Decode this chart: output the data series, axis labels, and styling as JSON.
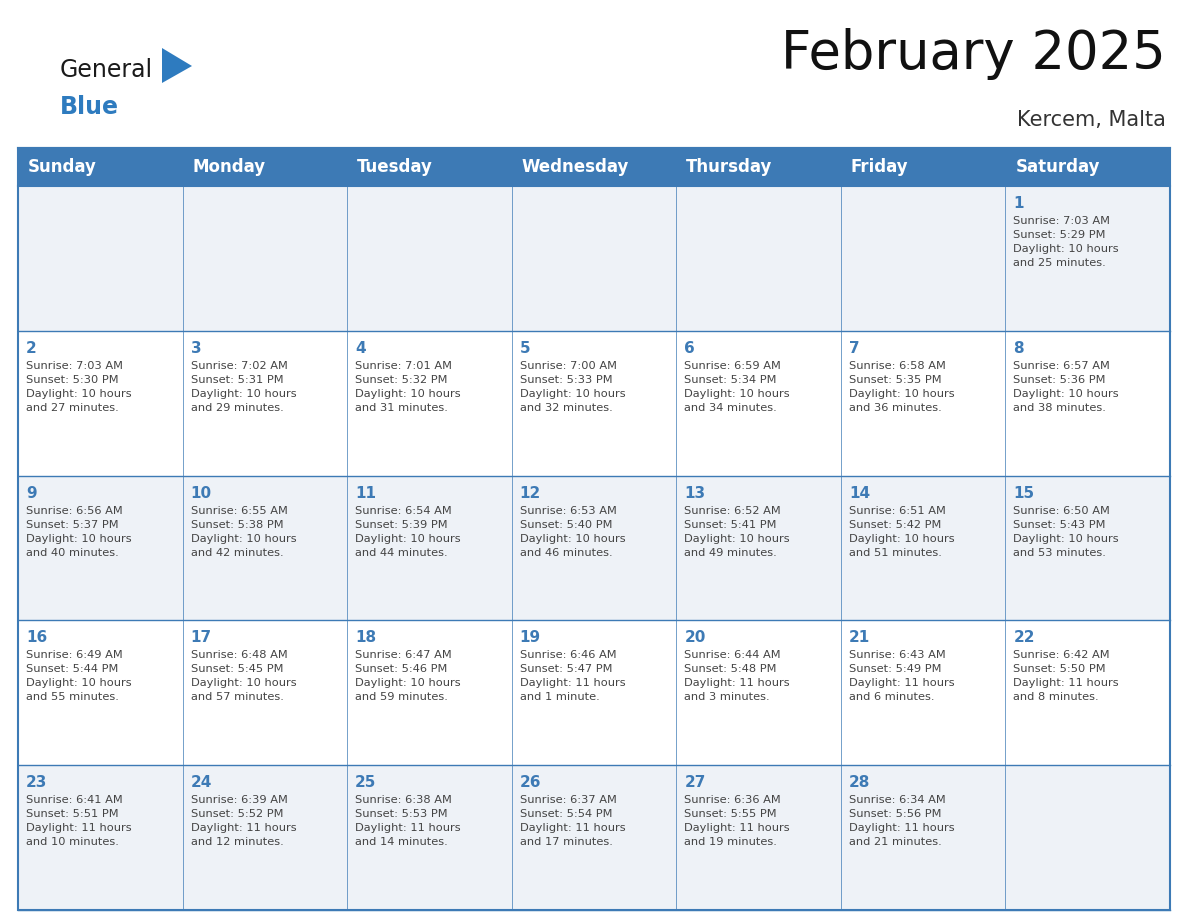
{
  "title": "February 2025",
  "subtitle": "Kercem, Malta",
  "header_bg": "#3d7ab5",
  "header_text_color": "#ffffff",
  "cell_bg_light": "#eef2f7",
  "cell_bg_white": "#ffffff",
  "border_color": "#3d7ab5",
  "text_color": "#444444",
  "day_num_color": "#3d7ab5",
  "logo_black": "#1a1a1a",
  "logo_blue": "#2e7bbf",
  "logo_tri": "#2e7bbf",
  "day_headers": [
    "Sunday",
    "Monday",
    "Tuesday",
    "Wednesday",
    "Thursday",
    "Friday",
    "Saturday"
  ],
  "title_fontsize": 38,
  "subtitle_fontsize": 15,
  "header_fontsize": 12,
  "day_num_fontsize": 11,
  "cell_fontsize": 8.2,
  "calendar": [
    [
      null,
      null,
      null,
      null,
      null,
      null,
      {
        "day": 1,
        "sunrise": "7:03 AM",
        "sunset": "5:29 PM",
        "daylight_h": "10 hours",
        "daylight_m": "and 25 minutes."
      }
    ],
    [
      {
        "day": 2,
        "sunrise": "7:03 AM",
        "sunset": "5:30 PM",
        "daylight_h": "10 hours",
        "daylight_m": "and 27 minutes."
      },
      {
        "day": 3,
        "sunrise": "7:02 AM",
        "sunset": "5:31 PM",
        "daylight_h": "10 hours",
        "daylight_m": "and 29 minutes."
      },
      {
        "day": 4,
        "sunrise": "7:01 AM",
        "sunset": "5:32 PM",
        "daylight_h": "10 hours",
        "daylight_m": "and 31 minutes."
      },
      {
        "day": 5,
        "sunrise": "7:00 AM",
        "sunset": "5:33 PM",
        "daylight_h": "10 hours",
        "daylight_m": "and 32 minutes."
      },
      {
        "day": 6,
        "sunrise": "6:59 AM",
        "sunset": "5:34 PM",
        "daylight_h": "10 hours",
        "daylight_m": "and 34 minutes."
      },
      {
        "day": 7,
        "sunrise": "6:58 AM",
        "sunset": "5:35 PM",
        "daylight_h": "10 hours",
        "daylight_m": "and 36 minutes."
      },
      {
        "day": 8,
        "sunrise": "6:57 AM",
        "sunset": "5:36 PM",
        "daylight_h": "10 hours",
        "daylight_m": "and 38 minutes."
      }
    ],
    [
      {
        "day": 9,
        "sunrise": "6:56 AM",
        "sunset": "5:37 PM",
        "daylight_h": "10 hours",
        "daylight_m": "and 40 minutes."
      },
      {
        "day": 10,
        "sunrise": "6:55 AM",
        "sunset": "5:38 PM",
        "daylight_h": "10 hours",
        "daylight_m": "and 42 minutes."
      },
      {
        "day": 11,
        "sunrise": "6:54 AM",
        "sunset": "5:39 PM",
        "daylight_h": "10 hours",
        "daylight_m": "and 44 minutes."
      },
      {
        "day": 12,
        "sunrise": "6:53 AM",
        "sunset": "5:40 PM",
        "daylight_h": "10 hours",
        "daylight_m": "and 46 minutes."
      },
      {
        "day": 13,
        "sunrise": "6:52 AM",
        "sunset": "5:41 PM",
        "daylight_h": "10 hours",
        "daylight_m": "and 49 minutes."
      },
      {
        "day": 14,
        "sunrise": "6:51 AM",
        "sunset": "5:42 PM",
        "daylight_h": "10 hours",
        "daylight_m": "and 51 minutes."
      },
      {
        "day": 15,
        "sunrise": "6:50 AM",
        "sunset": "5:43 PM",
        "daylight_h": "10 hours",
        "daylight_m": "and 53 minutes."
      }
    ],
    [
      {
        "day": 16,
        "sunrise": "6:49 AM",
        "sunset": "5:44 PM",
        "daylight_h": "10 hours",
        "daylight_m": "and 55 minutes."
      },
      {
        "day": 17,
        "sunrise": "6:48 AM",
        "sunset": "5:45 PM",
        "daylight_h": "10 hours",
        "daylight_m": "and 57 minutes."
      },
      {
        "day": 18,
        "sunrise": "6:47 AM",
        "sunset": "5:46 PM",
        "daylight_h": "10 hours",
        "daylight_m": "and 59 minutes."
      },
      {
        "day": 19,
        "sunrise": "6:46 AM",
        "sunset": "5:47 PM",
        "daylight_h": "11 hours",
        "daylight_m": "and 1 minute."
      },
      {
        "day": 20,
        "sunrise": "6:44 AM",
        "sunset": "5:48 PM",
        "daylight_h": "11 hours",
        "daylight_m": "and 3 minutes."
      },
      {
        "day": 21,
        "sunrise": "6:43 AM",
        "sunset": "5:49 PM",
        "daylight_h": "11 hours",
        "daylight_m": "and 6 minutes."
      },
      {
        "day": 22,
        "sunrise": "6:42 AM",
        "sunset": "5:50 PM",
        "daylight_h": "11 hours",
        "daylight_m": "and 8 minutes."
      }
    ],
    [
      {
        "day": 23,
        "sunrise": "6:41 AM",
        "sunset": "5:51 PM",
        "daylight_h": "11 hours",
        "daylight_m": "and 10 minutes."
      },
      {
        "day": 24,
        "sunrise": "6:39 AM",
        "sunset": "5:52 PM",
        "daylight_h": "11 hours",
        "daylight_m": "and 12 minutes."
      },
      {
        "day": 25,
        "sunrise": "6:38 AM",
        "sunset": "5:53 PM",
        "daylight_h": "11 hours",
        "daylight_m": "and 14 minutes."
      },
      {
        "day": 26,
        "sunrise": "6:37 AM",
        "sunset": "5:54 PM",
        "daylight_h": "11 hours",
        "daylight_m": "and 17 minutes."
      },
      {
        "day": 27,
        "sunrise": "6:36 AM",
        "sunset": "5:55 PM",
        "daylight_h": "11 hours",
        "daylight_m": "and 19 minutes."
      },
      {
        "day": 28,
        "sunrise": "6:34 AM",
        "sunset": "5:56 PM",
        "daylight_h": "11 hours",
        "daylight_m": "and 21 minutes."
      },
      null
    ]
  ]
}
